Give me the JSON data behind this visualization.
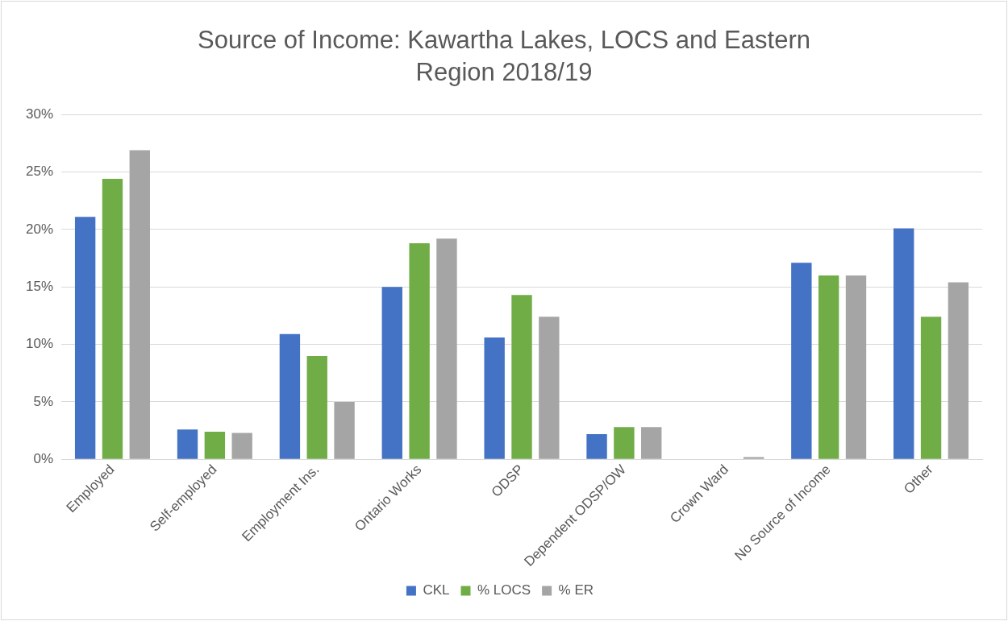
{
  "chart_data": {
    "type": "bar",
    "title": "Source of Income: Kawartha Lakes, LOCS and Eastern Region 2018/19",
    "categories": [
      "Employed",
      "Self-employed",
      "Employment Ins.",
      "Ontario Works",
      "ODSP",
      "Dependent ODSP/OW",
      "Crown Ward",
      "No Source of Income",
      "Other"
    ],
    "series": [
      {
        "name": "CKL",
        "color": "#4472c4",
        "values": [
          21.1,
          2.6,
          10.9,
          15.0,
          10.6,
          2.2,
          0,
          17.1,
          20.1
        ]
      },
      {
        "name": "% LOCS",
        "color": "#70ad47",
        "values": [
          24.4,
          2.4,
          9.0,
          18.8,
          14.3,
          2.8,
          0,
          16.0,
          12.4
        ]
      },
      {
        "name": "% ER",
        "color": "#a5a5a5",
        "values": [
          26.9,
          2.3,
          5.0,
          19.2,
          12.4,
          2.8,
          0.2,
          16.0,
          15.4
        ]
      }
    ],
    "ylim": [
      0,
      30
    ],
    "yticks": [
      {
        "value": 0,
        "label": "0%"
      },
      {
        "value": 5,
        "label": "5%"
      },
      {
        "value": 10,
        "label": "10%"
      },
      {
        "value": 15,
        "label": "15%"
      },
      {
        "value": 20,
        "label": "20%"
      },
      {
        "value": 25,
        "label": "25%"
      },
      {
        "value": 30,
        "label": "30%"
      }
    ],
    "grid": "y",
    "legend": "bottom"
  }
}
